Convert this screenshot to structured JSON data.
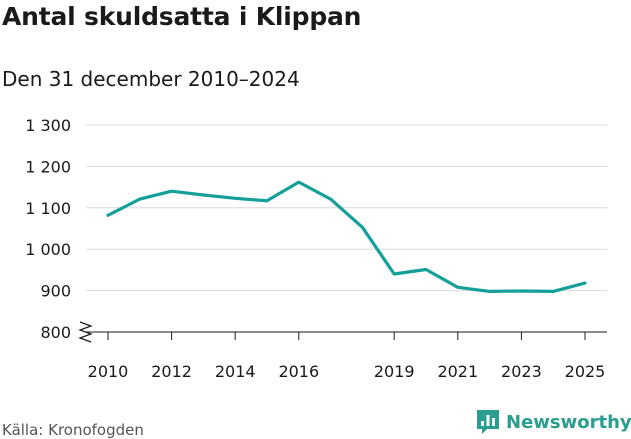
{
  "colors": {
    "line": "#14a098",
    "grid": "#d9d9d9",
    "axis": "#1a1a1a",
    "brand": "#2a9d8f"
  },
  "chart_data": {
    "type": "line",
    "title": "Antal skuldsatta i Klippan",
    "subtitle": "Den 31 december 2010–2024",
    "xlabel": "",
    "ylabel": "",
    "x": [
      2010,
      2011,
      2012,
      2013,
      2014,
      2015,
      2016,
      2017,
      2018,
      2019,
      2020,
      2021,
      2022,
      2023,
      2024,
      2025
    ],
    "series": [
      {
        "name": "Antal skuldsatta",
        "values": [
          1082,
          1121,
          1140,
          1131,
          1123,
          1117,
          1162,
          1121,
          1053,
          940,
          951,
          908,
          898,
          899,
          898,
          918
        ]
      }
    ],
    "xlim": [
      2010,
      2025
    ],
    "ylim": [
      800,
      1300
    ],
    "yticks": [
      800,
      900,
      1000,
      1100,
      1200,
      1300
    ],
    "ytick_labels": [
      "800",
      "900",
      "1 000",
      "1 100",
      "1 200",
      "1 300"
    ],
    "xticks": [
      2010,
      2012,
      2014,
      2016,
      2019,
      2021,
      2023,
      2025
    ],
    "xtick_labels": [
      "2010",
      "2012",
      "2014",
      "2016",
      "2019",
      "2021",
      "2023",
      "2025"
    ],
    "axis_break": true
  },
  "footer": {
    "source": "Källa: Kronofogden",
    "brand": "Newsworthy",
    "brand_icon": "newsworthy-logo-icon"
  }
}
